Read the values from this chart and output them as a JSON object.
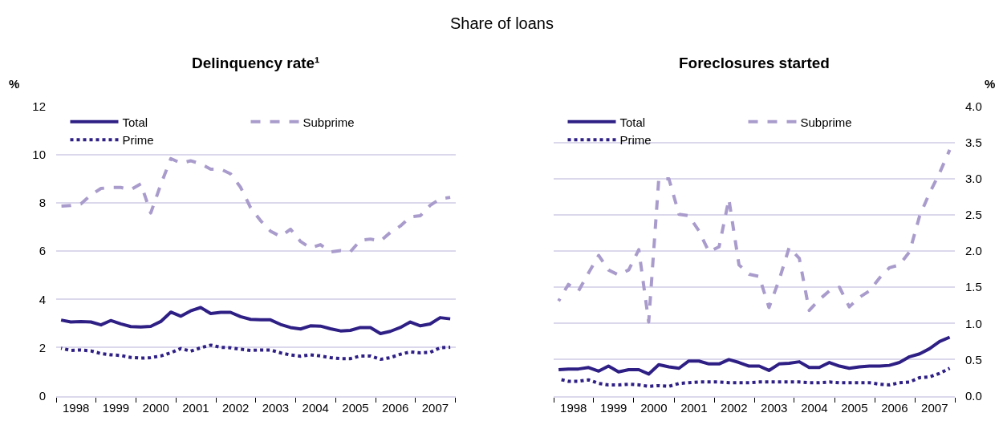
{
  "chart_data": [
    {
      "type": "line",
      "title": "Delinquency rate¹",
      "ylabel": "%",
      "annotations": [
        "Share of loans"
      ],
      "legend": "top left",
      "grid": "y",
      "ylim": [
        0,
        12
      ],
      "yticks": [
        0,
        2,
        4,
        6,
        8,
        10,
        12
      ],
      "xlim": [
        "1998-01-01",
        "2008-01-01"
      ],
      "xticks": [
        {
          "value": "1998-07-01",
          "label": "1998"
        },
        {
          "value": "1999-07-01",
          "label": "1999"
        },
        {
          "value": "2000-07-01",
          "label": "2000"
        },
        {
          "value": "2001-07-01",
          "label": "2001"
        },
        {
          "value": "2002-07-01",
          "label": "2002"
        },
        {
          "value": "2003-07-01",
          "label": "2003"
        },
        {
          "value": "2004-07-01",
          "label": "2004"
        },
        {
          "value": "2005-07-01",
          "label": "2005"
        },
        {
          "value": "2006-07-01",
          "label": "2006"
        },
        {
          "value": "2007-07-01",
          "label": "2007"
        },
        {
          "value": "1998-01-01",
          "label": null
        },
        {
          "value": "1999-01-01",
          "label": null
        },
        {
          "value": "2000-01-01",
          "label": null
        },
        {
          "value": "2001-01-01",
          "label": null
        },
        {
          "value": "2002-01-01",
          "label": null
        },
        {
          "value": "2003-01-01",
          "label": null
        },
        {
          "value": "2004-01-01",
          "label": null
        },
        {
          "value": "2005-01-01",
          "label": null
        },
        {
          "value": "2006-01-01",
          "label": null
        },
        {
          "value": "2007-01-01",
          "label": null
        },
        {
          "value": "2008-01-01",
          "label": null
        }
      ],
      "x": [
        "1998-02-15",
        "1998-05-15",
        "1998-08-15",
        "1998-11-15",
        "1999-02-15",
        "1999-05-15",
        "1999-08-15",
        "1999-11-15",
        "2000-02-15",
        "2000-05-15",
        "2000-08-15",
        "2000-11-15",
        "2001-02-15",
        "2001-05-15",
        "2001-08-15",
        "2001-11-15",
        "2002-02-15",
        "2002-05-15",
        "2002-08-15",
        "2002-11-15",
        "2003-02-15",
        "2003-05-15",
        "2003-08-15",
        "2003-11-15",
        "2004-02-15",
        "2004-05-15",
        "2004-08-15",
        "2004-11-15",
        "2005-02-15",
        "2005-05-15",
        "2005-08-15",
        "2005-11-15",
        "2006-02-15",
        "2006-05-15",
        "2006-08-15",
        "2006-11-15",
        "2007-02-15",
        "2007-05-15",
        "2007-08-15",
        "2007-11-15"
      ],
      "series": [
        {
          "name": "Total",
          "color": "#2e1f85",
          "line_style": "solid",
          "values": [
            3.14,
            3.06,
            3.08,
            3.06,
            2.94,
            3.12,
            2.98,
            2.87,
            2.85,
            2.88,
            3.08,
            3.47,
            3.3,
            3.52,
            3.66,
            3.41,
            3.46,
            3.46,
            3.28,
            3.17,
            3.15,
            3.15,
            2.96,
            2.83,
            2.77,
            2.9,
            2.89,
            2.78,
            2.69,
            2.71,
            2.83,
            2.83,
            2.58,
            2.67,
            2.83,
            3.06,
            2.9,
            2.98,
            3.24,
            3.19
          ]
        },
        {
          "name": "Prime",
          "color": "#2e1f85",
          "line_style": "dotted",
          "values": [
            1.97,
            1.88,
            1.9,
            1.86,
            1.75,
            1.7,
            1.67,
            1.59,
            1.56,
            1.58,
            1.65,
            1.78,
            1.96,
            1.85,
            1.99,
            2.1,
            2.01,
            1.99,
            1.93,
            1.88,
            1.9,
            1.9,
            1.78,
            1.69,
            1.64,
            1.7,
            1.65,
            1.58,
            1.54,
            1.54,
            1.65,
            1.65,
            1.51,
            1.58,
            1.72,
            1.82,
            1.78,
            1.8,
            1.99,
            2.01
          ]
        },
        {
          "name": "Subprime",
          "color": "#a99ccc",
          "line_style": "dashed",
          "values": [
            7.87,
            7.89,
            7.96,
            8.33,
            8.6,
            8.64,
            8.64,
            8.55,
            8.79,
            7.58,
            8.76,
            9.84,
            9.65,
            9.75,
            9.62,
            9.4,
            9.4,
            9.21,
            8.65,
            7.8,
            7.26,
            6.83,
            6.61,
            6.91,
            6.4,
            6.13,
            6.27,
            5.97,
            6.02,
            5.97,
            6.45,
            6.5,
            6.42,
            6.77,
            7.04,
            7.42,
            7.47,
            7.9,
            8.17,
            8.23
          ]
        }
      ]
    },
    {
      "type": "line",
      "title": "Foreclosures started",
      "ylabel": "%",
      "legend": "top left",
      "grid": "y",
      "ylim": [
        0,
        4
      ],
      "yticks": [
        {
          "value": 0,
          "label": "0.0"
        },
        {
          "value": 0.5,
          "label": "0.5"
        },
        {
          "value": 1,
          "label": "1.0"
        },
        {
          "value": 1.5,
          "label": "1.5"
        },
        {
          "value": 2,
          "label": "2.0"
        },
        {
          "value": 2.5,
          "label": "2.5"
        },
        {
          "value": 3,
          "label": "3.0"
        },
        {
          "value": 3.5,
          "label": "3.5"
        },
        {
          "value": 4,
          "label": "4.0"
        }
      ],
      "xlim": [
        "1998-01-01",
        "2008-01-01"
      ],
      "xticks": [
        {
          "value": "1998-07-01",
          "label": "1998"
        },
        {
          "value": "1999-07-01",
          "label": "1999"
        },
        {
          "value": "2000-07-01",
          "label": "2000"
        },
        {
          "value": "2001-07-01",
          "label": "2001"
        },
        {
          "value": "2002-07-01",
          "label": "2002"
        },
        {
          "value": "2003-07-01",
          "label": "2003"
        },
        {
          "value": "2004-07-01",
          "label": "2004"
        },
        {
          "value": "2005-07-01",
          "label": "2005"
        },
        {
          "value": "2006-07-01",
          "label": "2006"
        },
        {
          "value": "2007-07-01",
          "label": "2007"
        },
        {
          "value": "1998-01-01",
          "label": null
        },
        {
          "value": "1999-01-01",
          "label": null
        },
        {
          "value": "2000-01-01",
          "label": null
        },
        {
          "value": "2001-01-01",
          "label": null
        },
        {
          "value": "2002-01-01",
          "label": null
        },
        {
          "value": "2003-01-01",
          "label": null
        },
        {
          "value": "2004-01-01",
          "label": null
        },
        {
          "value": "2005-01-01",
          "label": null
        },
        {
          "value": "2006-01-01",
          "label": null
        },
        {
          "value": "2007-01-01",
          "label": null
        },
        {
          "value": "2008-01-01",
          "label": null
        }
      ],
      "x": [
        "1998-02-15",
        "1998-05-15",
        "1998-08-15",
        "1998-11-15",
        "1999-02-15",
        "1999-05-15",
        "1999-08-15",
        "1999-11-15",
        "2000-02-15",
        "2000-05-15",
        "2000-08-15",
        "2000-11-15",
        "2001-02-15",
        "2001-05-15",
        "2001-08-15",
        "2001-11-15",
        "2002-02-15",
        "2002-05-15",
        "2002-08-15",
        "2002-11-15",
        "2003-02-15",
        "2003-05-15",
        "2003-08-15",
        "2003-11-15",
        "2004-02-15",
        "2004-05-15",
        "2004-08-15",
        "2004-11-15",
        "2005-02-15",
        "2005-05-15",
        "2005-08-15",
        "2005-11-15",
        "2006-02-15",
        "2006-05-15",
        "2006-08-15",
        "2006-11-15",
        "2007-02-15",
        "2007-05-15",
        "2007-08-15",
        "2007-11-15"
      ],
      "series": [
        {
          "name": "Total",
          "color": "#2e1f85",
          "line_style": "solid",
          "values": [
            0.36,
            0.37,
            0.37,
            0.39,
            0.34,
            0.41,
            0.33,
            0.36,
            0.36,
            0.3,
            0.43,
            0.4,
            0.38,
            0.48,
            0.48,
            0.44,
            0.44,
            0.5,
            0.46,
            0.41,
            0.41,
            0.35,
            0.44,
            0.45,
            0.47,
            0.39,
            0.39,
            0.46,
            0.41,
            0.38,
            0.4,
            0.41,
            0.41,
            0.42,
            0.46,
            0.54,
            0.58,
            0.65,
            0.75,
            0.81
          ]
        },
        {
          "name": "Prime",
          "color": "#2e1f85",
          "line_style": "dotted",
          "values": [
            0.23,
            0.2,
            0.2,
            0.22,
            0.17,
            0.15,
            0.15,
            0.16,
            0.15,
            0.13,
            0.14,
            0.13,
            0.17,
            0.18,
            0.19,
            0.19,
            0.19,
            0.18,
            0.18,
            0.18,
            0.19,
            0.19,
            0.19,
            0.19,
            0.19,
            0.18,
            0.18,
            0.19,
            0.18,
            0.18,
            0.18,
            0.18,
            0.16,
            0.15,
            0.18,
            0.19,
            0.25,
            0.26,
            0.31,
            0.38
          ]
        },
        {
          "name": "Subprime",
          "color": "#a99ccc",
          "line_style": "dashed",
          "values": [
            1.31,
            1.54,
            1.45,
            1.7,
            1.94,
            1.74,
            1.67,
            1.74,
            2.02,
            1.02,
            3.0,
            3.0,
            2.51,
            2.49,
            2.28,
            1.99,
            2.06,
            2.72,
            1.81,
            1.68,
            1.65,
            1.22,
            1.6,
            2.05,
            1.9,
            1.18,
            1.33,
            1.45,
            1.5,
            1.23,
            1.36,
            1.45,
            1.63,
            1.77,
            1.81,
            1.99,
            2.49,
            2.8,
            3.08,
            3.4
          ]
        }
      ]
    }
  ]
}
